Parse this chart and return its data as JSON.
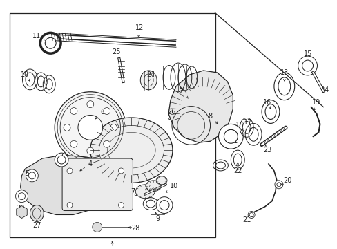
{
  "background_color": "#ffffff",
  "line_color": "#222222",
  "fig_width": 4.89,
  "fig_height": 3.6,
  "dpi": 100,
  "xlim": [
    0,
    489
  ],
  "ylim": [
    0,
    360
  ]
}
